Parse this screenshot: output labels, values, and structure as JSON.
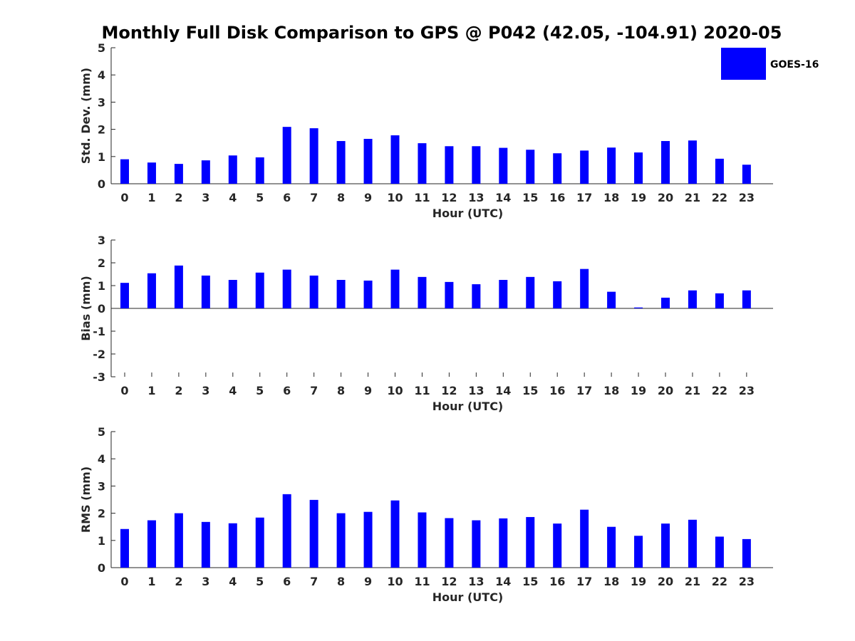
{
  "title": "Monthly Full Disk Comparison to GPS @ P042 (42.05, -104.91) 2020-05",
  "legend": {
    "label": "GOES-16",
    "position": "top-right"
  },
  "colors": {
    "bar": "#0000ff",
    "axis": "#262626",
    "text": "#000000"
  },
  "chart_data": [
    {
      "type": "bar",
      "ylabel": "Std. Dev. (mm)",
      "xlabel": "Hour (UTC)",
      "ylim": [
        0,
        5
      ],
      "yticks": [
        "0",
        "1",
        "2",
        "3",
        "4",
        "5"
      ],
      "categories": [
        "0",
        "1",
        "2",
        "3",
        "4",
        "5",
        "6",
        "7",
        "8",
        "9",
        "10",
        "11",
        "12",
        "13",
        "14",
        "15",
        "16",
        "17",
        "18",
        "19",
        "20",
        "21",
        "22",
        "23"
      ],
      "series": [
        {
          "name": "GOES-16",
          "values": [
            0.9,
            0.78,
            0.73,
            0.86,
            1.04,
            0.97,
            2.09,
            2.04,
            1.57,
            1.65,
            1.78,
            1.49,
            1.38,
            1.38,
            1.32,
            1.25,
            1.12,
            1.22,
            1.33,
            1.15,
            1.57,
            1.59,
            0.92,
            0.7
          ]
        }
      ]
    },
    {
      "type": "bar",
      "ylabel": "Bias (mm)",
      "xlabel": "Hour (UTC)",
      "ylim": [
        -3,
        3
      ],
      "yticks": [
        "-3",
        "-2",
        "-1",
        "0",
        "1",
        "2",
        "3"
      ],
      "categories": [
        "0",
        "1",
        "2",
        "3",
        "4",
        "5",
        "6",
        "7",
        "8",
        "9",
        "10",
        "11",
        "12",
        "13",
        "14",
        "15",
        "16",
        "17",
        "18",
        "19",
        "20",
        "21",
        "22",
        "23"
      ],
      "series": [
        {
          "name": "GOES-16",
          "values": [
            1.12,
            1.54,
            1.88,
            1.44,
            1.25,
            1.57,
            1.7,
            1.44,
            1.25,
            1.22,
            1.7,
            1.38,
            1.16,
            1.06,
            1.25,
            1.38,
            1.19,
            1.73,
            0.73,
            0.04,
            0.47,
            0.79,
            0.66,
            0.79
          ]
        }
      ]
    },
    {
      "type": "bar",
      "ylabel": "RMS (mm)",
      "xlabel": "Hour (UTC)",
      "ylim": [
        0,
        5
      ],
      "yticks": [
        "0",
        "1",
        "2",
        "3",
        "4",
        "5"
      ],
      "categories": [
        "0",
        "1",
        "2",
        "3",
        "4",
        "5",
        "6",
        "7",
        "8",
        "9",
        "10",
        "11",
        "12",
        "13",
        "14",
        "15",
        "16",
        "17",
        "18",
        "19",
        "20",
        "21",
        "22",
        "23"
      ],
      "series": [
        {
          "name": "GOES-16",
          "values": [
            1.42,
            1.74,
            2.0,
            1.68,
            1.63,
            1.84,
            2.7,
            2.49,
            2.0,
            2.05,
            2.47,
            2.03,
            1.82,
            1.74,
            1.81,
            1.86,
            1.62,
            2.13,
            1.5,
            1.17,
            1.62,
            1.76,
            1.14,
            1.05
          ]
        }
      ]
    }
  ]
}
